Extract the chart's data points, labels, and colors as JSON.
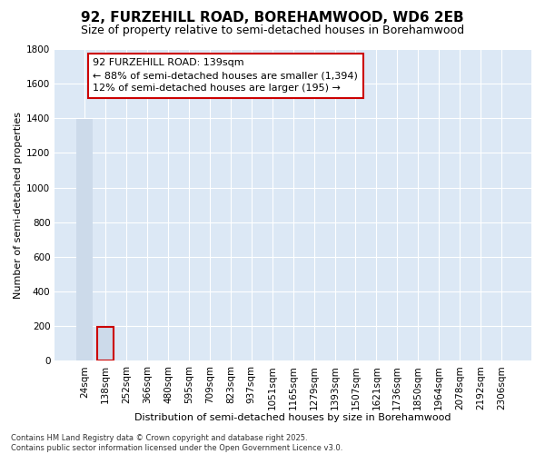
{
  "title": "92, FURZEHILL ROAD, BOREHAMWOOD, WD6 2EB",
  "subtitle": "Size of property relative to semi-detached houses in Borehamwood",
  "xlabel": "Distribution of semi-detached houses by size in Borehamwood",
  "ylabel": "Number of semi-detached properties",
  "annotation_line1": "92 FURZEHILL ROAD: 139sqm",
  "annotation_line2": "← 88% of semi-detached houses are smaller (1,394)",
  "annotation_line3": "12% of semi-detached houses are larger (195) →",
  "footer_line1": "Contains HM Land Registry data © Crown copyright and database right 2025.",
  "footer_line2": "Contains public sector information licensed under the Open Government Licence v3.0.",
  "categories": [
    "24sqm",
    "138sqm",
    "252sqm",
    "366sqm",
    "480sqm",
    "595sqm",
    "709sqm",
    "823sqm",
    "937sqm",
    "1051sqm",
    "1165sqm",
    "1279sqm",
    "1393sqm",
    "1507sqm",
    "1621sqm",
    "1736sqm",
    "1850sqm",
    "1964sqm",
    "2078sqm",
    "2192sqm",
    "2306sqm"
  ],
  "values": [
    1394,
    195,
    2,
    0,
    0,
    0,
    0,
    0,
    0,
    0,
    0,
    0,
    0,
    0,
    0,
    0,
    0,
    0,
    0,
    0,
    0
  ],
  "bar_color": "#ccdaea",
  "highlight_bar_index": 1,
  "highlight_edge_color": "#cc0000",
  "background_color": "#dce8f5",
  "grid_color": "#ffffff",
  "ylim": [
    0,
    1800
  ],
  "yticks": [
    0,
    200,
    400,
    600,
    800,
    1000,
    1200,
    1400,
    1600,
    1800
  ],
  "title_fontsize": 11,
  "subtitle_fontsize": 9,
  "tick_fontsize": 7.5,
  "ylabel_fontsize": 8,
  "xlabel_fontsize": 8,
  "annot_fontsize": 8,
  "footer_fontsize": 6
}
